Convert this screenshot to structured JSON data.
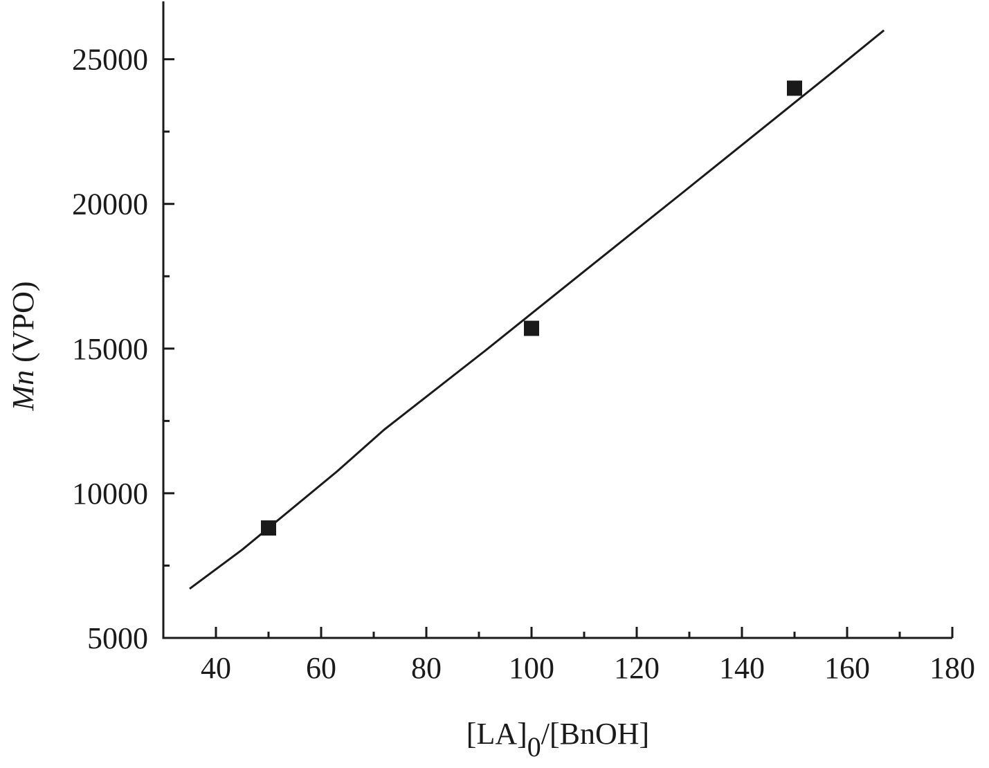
{
  "chart_data": {
    "type": "scatter",
    "x_label_parts": [
      "[LA]",
      "0",
      "/[BnOH]"
    ],
    "y_label_parts": [
      "Mn",
      " (VPO)"
    ],
    "xlim": [
      30,
      180
    ],
    "ylim": [
      5000,
      27000
    ],
    "xticks": [
      40,
      60,
      80,
      100,
      120,
      140,
      160,
      180
    ],
    "xminorticks": [
      50,
      70,
      90,
      110,
      130,
      150,
      170
    ],
    "yticks": [
      5000,
      10000,
      15000,
      20000,
      25000
    ],
    "yminorticks": [
      7500,
      12500,
      17500,
      22500
    ],
    "series": [
      {
        "kind": "markers",
        "color": "#1a1a1a",
        "x": [
          50,
          100,
          150
        ],
        "values": [
          8800,
          15700,
          24000
        ]
      },
      {
        "kind": "line",
        "color": "#1a1a1a",
        "x": [
          35,
          45,
          63,
          72,
          91,
          110,
          129,
          157,
          167
        ],
        "values": [
          6700,
          8050,
          10750,
          12200,
          14900,
          17670,
          20430,
          24520,
          26000
        ]
      }
    ]
  }
}
